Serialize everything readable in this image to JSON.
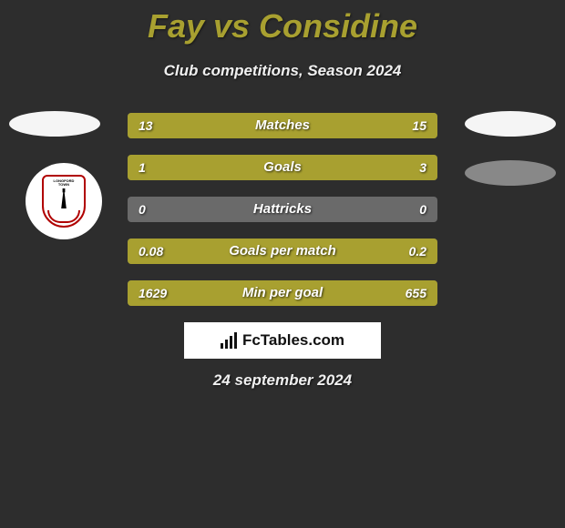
{
  "title": "Fay vs Considine",
  "subtitle": "Club competitions, Season 2024",
  "date": "24 september 2024",
  "logo_text": "FcTables.com",
  "colors": {
    "background": "#2d2d2d",
    "accent": "#a8a030",
    "bar_bg": "#6a6a6a",
    "text": "#f0f0f0"
  },
  "crest": {
    "top_text": "LONGFORD",
    "mid_text": "TOWN"
  },
  "stats": [
    {
      "label": "Matches",
      "left_val": "13",
      "right_val": "15",
      "left_pct": 46,
      "right_pct": 54
    },
    {
      "label": "Goals",
      "left_val": "1",
      "right_val": "3",
      "left_pct": 25,
      "right_pct": 75
    },
    {
      "label": "Hattricks",
      "left_val": "0",
      "right_val": "0",
      "left_pct": 0,
      "right_pct": 0
    },
    {
      "label": "Goals per match",
      "left_val": "0.08",
      "right_val": "0.2",
      "left_pct": 28,
      "right_pct": 72
    },
    {
      "label": "Min per goal",
      "left_val": "1629",
      "right_val": "655",
      "left_pct": 71,
      "right_pct": 29
    }
  ]
}
